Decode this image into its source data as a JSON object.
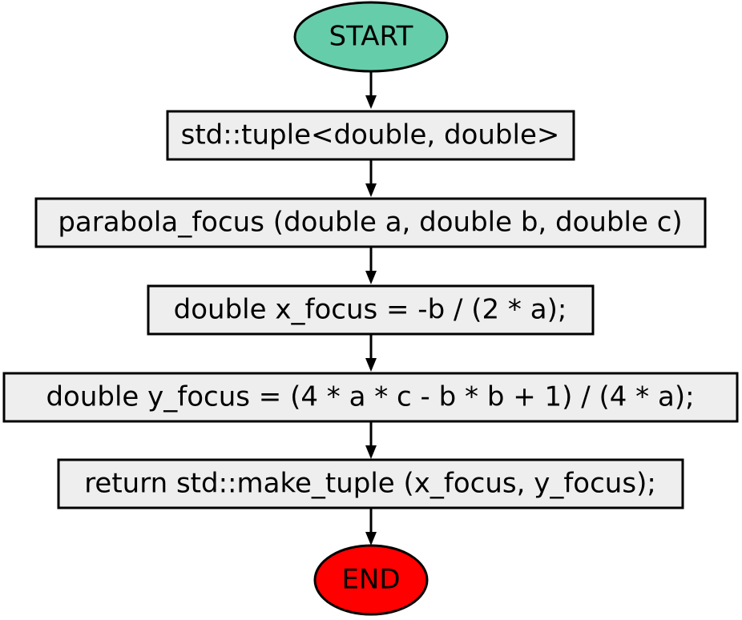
{
  "flowchart": {
    "start": {
      "label": "START",
      "color": "#66cdaa"
    },
    "steps": [
      {
        "label": "std::tuple<double, double>"
      },
      {
        "label": "parabola_focus (double a, double b, double c)"
      },
      {
        "label": "double x_focus = -b / (2 * a);"
      },
      {
        "label": "double y_focus = (4 * a * c - b * b + 1) / (4 * a);"
      },
      {
        "label": "return std::make_tuple (x_focus, y_focus);"
      }
    ],
    "end": {
      "label": "END",
      "color": "#ff0000"
    },
    "box_color": "#eeeeee"
  }
}
